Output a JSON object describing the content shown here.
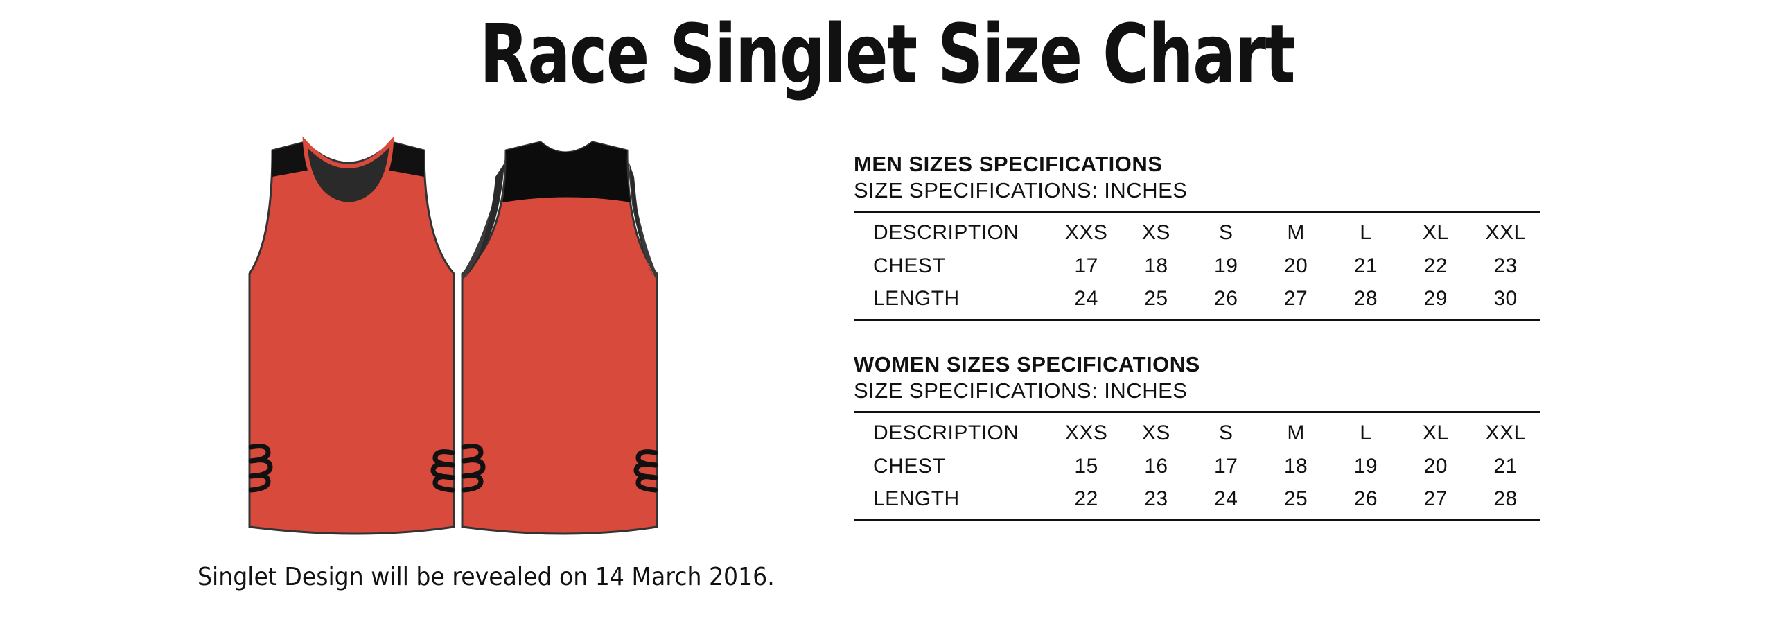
{
  "title": "Race Singlet Size Chart",
  "caption": "Singlet Design will be revealed on 14 March 2016.",
  "colors": {
    "singlet_red": "#d84a3c",
    "singlet_black": "#111111",
    "panel_gray": "#3a3a3a"
  },
  "men": {
    "heading": "MEN SIZES SPECIFICATIONS",
    "subheading": "SIZE SPECIFICATIONS: INCHES",
    "rows": [
      {
        "label": "DESCRIPTION",
        "cells": [
          "XXS",
          "XS",
          "S",
          "M",
          "L",
          "XL",
          "XXL"
        ]
      },
      {
        "label": "CHEST",
        "cells": [
          "17",
          "18",
          "19",
          "20",
          "21",
          "22",
          "23"
        ]
      },
      {
        "label": "LENGTH",
        "cells": [
          "24",
          "25",
          "26",
          "27",
          "28",
          "29",
          "30"
        ]
      }
    ]
  },
  "women": {
    "heading": "WOMEN SIZES SPECIFICATIONS",
    "subheading": "SIZE SPECIFICATIONS: INCHES",
    "rows": [
      {
        "label": "DESCRIPTION",
        "cells": [
          "XXS",
          "XS",
          "S",
          "M",
          "L",
          "XL",
          "XXL"
        ]
      },
      {
        "label": "CHEST",
        "cells": [
          "15",
          "16",
          "17",
          "18",
          "19",
          "20",
          "21"
        ]
      },
      {
        "label": "LENGTH",
        "cells": [
          "22",
          "23",
          "24",
          "25",
          "26",
          "27",
          "28"
        ]
      }
    ]
  }
}
